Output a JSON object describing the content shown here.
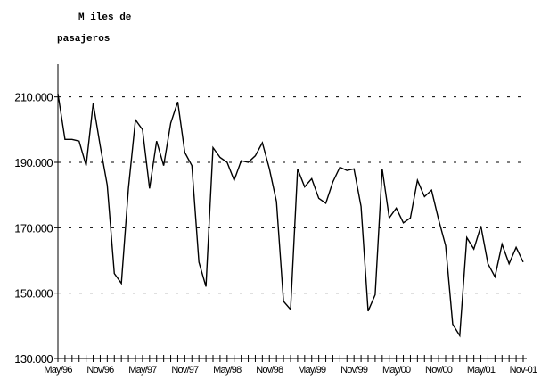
{
  "chart_data": {
    "type": "line",
    "title": "",
    "unit_label": [
      "M iles de",
      "pasajeros"
    ],
    "xlabel": "",
    "ylabel": "",
    "ylim": [
      130000,
      220000
    ],
    "yticks": [
      130000,
      150000,
      170000,
      190000,
      210000
    ],
    "ytick_labels": [
      "130.000",
      "150.000",
      "170.000",
      "190.000",
      "210.000"
    ],
    "xtick_labels": [
      "May/96",
      "Nov/96",
      "May/97",
      "Nov/97",
      "May/98",
      "Nov/98",
      "May/99",
      "Nov/99",
      "May/00",
      "Nov/00",
      "May/01",
      "Nov-01"
    ],
    "grid": "horizontal-dashed",
    "series": [
      {
        "color": "#000000",
        "values": [
          211000,
          197000,
          197000,
          196500,
          189000,
          208000,
          195000,
          183000,
          156000,
          153000,
          182000,
          203000,
          200000,
          182000,
          196500,
          189000,
          202000,
          208500,
          193000,
          189000,
          159500,
          152000,
          194500,
          191500,
          190000,
          184500,
          190500,
          190000,
          192000,
          196000,
          188000,
          178000,
          147500,
          145000,
          188000,
          182500,
          185000,
          179000,
          177500,
          184000,
          188500,
          187500,
          188000,
          176500,
          144500,
          149500,
          188000,
          173000,
          176000,
          171500,
          173000,
          184500,
          179500,
          181500,
          172500,
          164500,
          140500,
          137000,
          167000,
          163500,
          170500,
          159000,
          155000,
          165000,
          159000,
          164000,
          159500
        ]
      }
    ]
  }
}
